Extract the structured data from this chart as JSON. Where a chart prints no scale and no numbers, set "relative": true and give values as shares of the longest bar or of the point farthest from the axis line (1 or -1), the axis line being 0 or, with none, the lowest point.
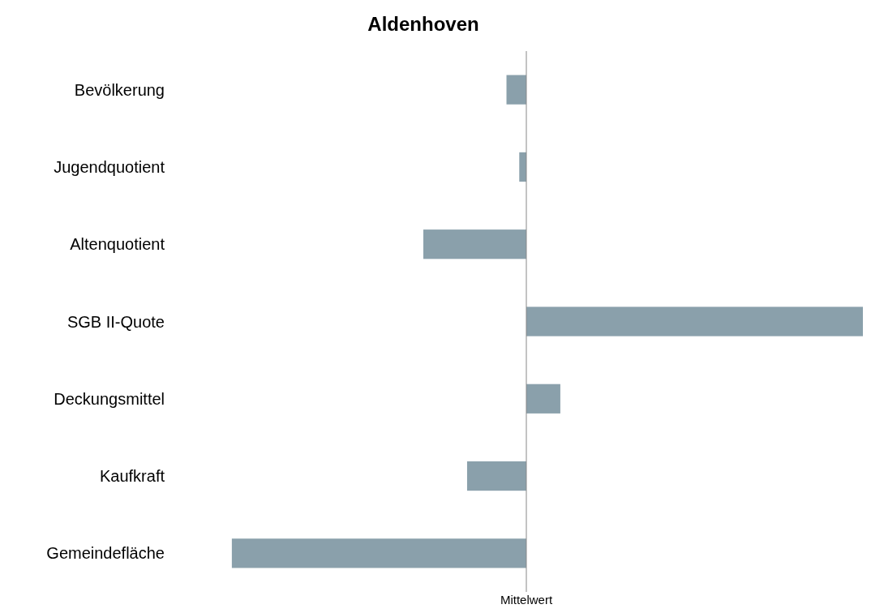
{
  "chart_data": {
    "type": "bar",
    "title": "Aldenhoven",
    "orientation": "horizontal",
    "relative": true,
    "categories": [
      "Bevölkerung",
      "Jugendquotient",
      "Altenquotient",
      "SGB II-Quote",
      "Deckungsmittel",
      "Kaufkraft",
      "Gemeindefläche"
    ],
    "values": [
      -0.059,
      -0.021,
      -0.306,
      1,
      0.101,
      -0.176,
      -0.875
    ],
    "color": "#8aa0ab",
    "ref_lines": [
      {
        "axis": "x",
        "value": 0,
        "label": "Mittelwert"
      }
    ]
  }
}
